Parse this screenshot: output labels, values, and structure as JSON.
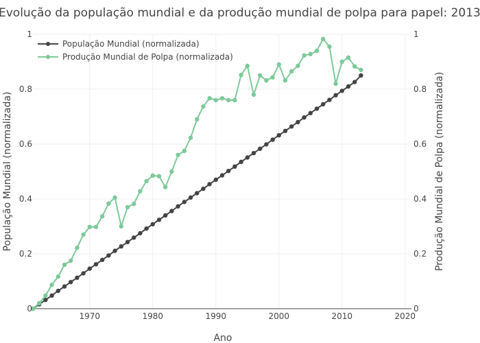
{
  "chart_data": {
    "type": "line",
    "title": "Evolução da população mundial e da produção mundial de polpa para papel: 2013",
    "xlabel": "Ano",
    "ylabel": "População Mundial (normalizada)",
    "y2label": "Produção Mundial de Polpa (normalizada)",
    "xlim": [
      1961,
      2021
    ],
    "ylim": [
      0,
      1
    ],
    "y2lim": [
      0,
      1
    ],
    "x_ticks": [
      1970,
      1980,
      1990,
      2000,
      2010,
      2020
    ],
    "y_ticks": [
      0,
      0.2,
      0.4,
      0.6,
      0.8,
      1
    ],
    "y_tick_labels": [
      "0",
      "0.2",
      "0.4",
      "0.6",
      "0.8",
      "1"
    ],
    "grid": true,
    "legend_position": "top-left",
    "series": [
      {
        "name": "População Mundial (normalizada)",
        "color": "#444444",
        "axis": "left",
        "x": [
          1961,
          1962,
          1963,
          1964,
          1965,
          1966,
          1967,
          1968,
          1969,
          1970,
          1971,
          1972,
          1973,
          1974,
          1975,
          1976,
          1977,
          1978,
          1979,
          1980,
          1981,
          1982,
          1983,
          1984,
          1985,
          1986,
          1987,
          1988,
          1989,
          1990,
          1991,
          1992,
          1993,
          1994,
          1995,
          1996,
          1997,
          1998,
          1999,
          2000,
          2001,
          2002,
          2003,
          2004,
          2005,
          2006,
          2007,
          2008,
          2009,
          2010,
          2011,
          2012,
          2013
        ],
        "y": [
          0.0,
          0.016,
          0.032,
          0.048,
          0.065,
          0.081,
          0.097,
          0.113,
          0.129,
          0.146,
          0.162,
          0.178,
          0.194,
          0.211,
          0.227,
          0.243,
          0.259,
          0.275,
          0.292,
          0.308,
          0.324,
          0.34,
          0.356,
          0.373,
          0.389,
          0.405,
          0.421,
          0.437,
          0.454,
          0.47,
          0.486,
          0.502,
          0.518,
          0.535,
          0.551,
          0.567,
          0.583,
          0.599,
          0.616,
          0.632,
          0.648,
          0.664,
          0.68,
          0.697,
          0.713,
          0.729,
          0.745,
          0.761,
          0.778,
          0.794,
          0.81,
          0.826,
          0.85
        ]
      },
      {
        "name": "Produção Mundial de Polpa (normalizada)",
        "color": "#7dc99a",
        "axis": "right",
        "x": [
          1961,
          1962,
          1963,
          1964,
          1965,
          1966,
          1967,
          1968,
          1969,
          1970,
          1971,
          1972,
          1973,
          1974,
          1975,
          1976,
          1977,
          1978,
          1979,
          1980,
          1981,
          1982,
          1983,
          1984,
          1985,
          1986,
          1987,
          1988,
          1989,
          1990,
          1991,
          1992,
          1993,
          1994,
          1995,
          1996,
          1997,
          1998,
          1999,
          2000,
          2001,
          2002,
          2003,
          2004,
          2005,
          2006,
          2007,
          2008,
          2009,
          2010,
          2011,
          2012,
          2013
        ],
        "y": [
          0.0,
          0.02,
          0.048,
          0.087,
          0.117,
          0.16,
          0.175,
          0.222,
          0.27,
          0.298,
          0.298,
          0.337,
          0.383,
          0.405,
          0.3,
          0.37,
          0.382,
          0.428,
          0.465,
          0.485,
          0.483,
          0.443,
          0.5,
          0.56,
          0.575,
          0.623,
          0.69,
          0.737,
          0.767,
          0.76,
          0.767,
          0.76,
          0.76,
          0.852,
          0.885,
          0.78,
          0.85,
          0.832,
          0.843,
          0.89,
          0.832,
          0.865,
          0.885,
          0.923,
          0.928,
          0.94,
          0.983,
          0.955,
          0.82,
          0.9,
          0.915,
          0.883,
          0.87
        ]
      }
    ]
  }
}
